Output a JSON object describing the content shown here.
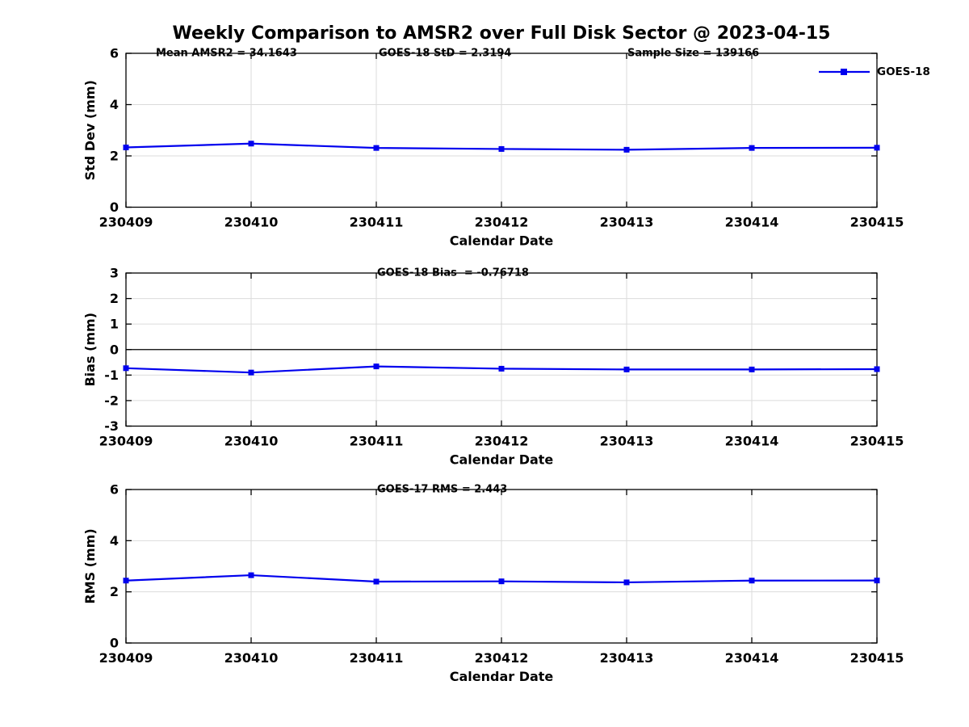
{
  "title": "Weekly Comparison to AMSR2 over Full Disk Sector @ 2023-04-15",
  "xlabel": "Calendar Date",
  "legend": {
    "label": "GOES-18",
    "location": "northeast"
  },
  "colors": {
    "line": "#0000ee",
    "grid": "#dbdbdb",
    "axis": "#000000",
    "zero_line": "#000000",
    "text": "#000000",
    "background": "#ffffff"
  },
  "categories": [
    "230409",
    "230410",
    "230411",
    "230412",
    "230413",
    "230414",
    "230415"
  ],
  "chart_data": [
    {
      "type": "line",
      "name": "std-dev-subplot",
      "title": "",
      "annotations": [
        "Mean AMSR2 = 34.1643",
        "GOES-18 StD = 2.3194",
        "Sample Size = 139166"
      ],
      "categories": [
        "230409",
        "230410",
        "230411",
        "230412",
        "230413",
        "230414",
        "230415"
      ],
      "series": [
        {
          "name": "GOES-18",
          "values": [
            2.33,
            2.48,
            2.31,
            2.27,
            2.24,
            2.31,
            2.3194
          ]
        }
      ],
      "xlabel": "Calendar Date",
      "ylabel": "Std Dev (mm)",
      "ylim": [
        0,
        6
      ],
      "yticks": [
        0,
        2,
        4,
        6
      ],
      "grid": true,
      "zero_line": false,
      "legend_entries": [
        "GOES-18"
      ]
    },
    {
      "type": "line",
      "name": "bias-subplot",
      "title": "",
      "annotations": [
        "GOES-18 Bias  = -0.76718"
      ],
      "categories": [
        "230409",
        "230410",
        "230411",
        "230412",
        "230413",
        "230414",
        "230415"
      ],
      "series": [
        {
          "name": "GOES-18",
          "values": [
            -0.73,
            -0.9,
            -0.66,
            -0.75,
            -0.78,
            -0.78,
            -0.76718
          ]
        }
      ],
      "xlabel": "Calendar Date",
      "ylabel": "Bias (mm)",
      "ylim": [
        -3,
        3
      ],
      "yticks": [
        -3,
        -2,
        -1,
        0,
        1,
        2,
        3
      ],
      "grid": true,
      "zero_line": true,
      "legend_entries": []
    },
    {
      "type": "line",
      "name": "rms-subplot",
      "title": "",
      "annotations": [
        "GOES-17 RMS = 2.443"
      ],
      "categories": [
        "230409",
        "230410",
        "230411",
        "230412",
        "230413",
        "230414",
        "230415"
      ],
      "series": [
        {
          "name": "GOES-18",
          "values": [
            2.44,
            2.65,
            2.4,
            2.41,
            2.37,
            2.44,
            2.443
          ]
        }
      ],
      "xlabel": "Calendar Date",
      "ylabel": "RMS (mm)",
      "ylim": [
        0,
        6
      ],
      "yticks": [
        0,
        2,
        4,
        6
      ],
      "grid": true,
      "zero_line": false,
      "legend_entries": []
    }
  ]
}
